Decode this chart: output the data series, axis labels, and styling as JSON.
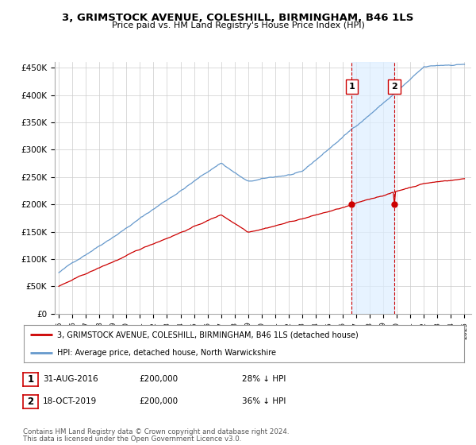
{
  "title": "3, GRIMSTOCK AVENUE, COLESHILL, BIRMINGHAM, B46 1LS",
  "subtitle": "Price paid vs. HM Land Registry's House Price Index (HPI)",
  "ylim": [
    0,
    460000
  ],
  "yticks": [
    0,
    50000,
    100000,
    150000,
    200000,
    250000,
    300000,
    350000,
    400000,
    450000
  ],
  "ytick_labels": [
    "£0",
    "£50K",
    "£100K",
    "£150K",
    "£200K",
    "£250K",
    "£300K",
    "£350K",
    "£400K",
    "£450K"
  ],
  "hpi_color": "#6699cc",
  "price_color": "#cc0000",
  "hpi_fill_color": "#ddeeff",
  "sale1_date_num": 2016.67,
  "sale1_price": 200000,
  "sale1_label": "1",
  "sale1_text": "31-AUG-2016",
  "sale1_price_str": "£200,000",
  "sale1_pct": "28% ↓ HPI",
  "sale2_date_num": 2019.8,
  "sale2_price": 200000,
  "sale2_label": "2",
  "sale2_text": "18-OCT-2019",
  "sale2_price_str": "£200,000",
  "sale2_pct": "36% ↓ HPI",
  "legend_property": "3, GRIMSTOCK AVENUE, COLESHILL, BIRMINGHAM, B46 1LS (detached house)",
  "legend_hpi": "HPI: Average price, detached house, North Warwickshire",
  "footer1": "Contains HM Land Registry data © Crown copyright and database right 2024.",
  "footer2": "This data is licensed under the Open Government Licence v3.0.",
  "background_color": "#ffffff",
  "grid_color": "#cccccc",
  "xstart": 1995,
  "xend": 2025
}
